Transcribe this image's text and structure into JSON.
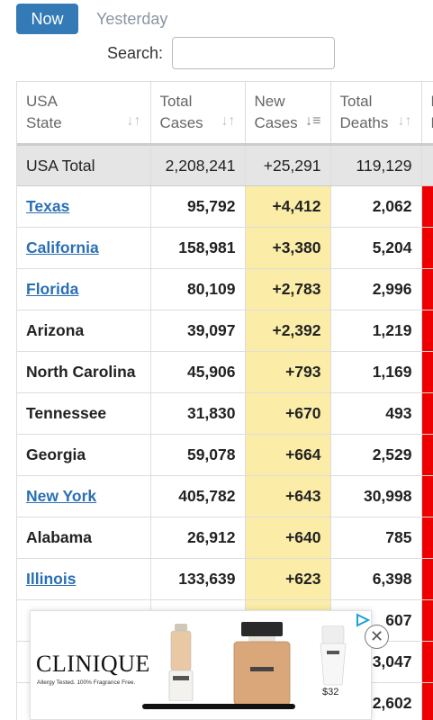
{
  "tabs": {
    "now": "Now",
    "yesterday": "Yesterday"
  },
  "search": {
    "label": "Search:",
    "value": "",
    "placeholder": ""
  },
  "columns": [
    {
      "line1": "USA",
      "line2": "State"
    },
    {
      "line1": "Total",
      "line2": "Cases"
    },
    {
      "line1": "New",
      "line2": "Cases"
    },
    {
      "line1": "Total",
      "line2": "Deaths"
    },
    {
      "line1": "N",
      "line2": "D"
    }
  ],
  "total_row": {
    "state": "USA Total",
    "total_cases": "2,208,241",
    "new_cases": "+25,291",
    "total_deaths": "119,129"
  },
  "rows": [
    {
      "state": "Texas",
      "total_cases": "95,792",
      "new_cases": "+4,412",
      "total_deaths": "2,062"
    },
    {
      "state": "California",
      "total_cases": "158,981",
      "new_cases": "+3,380",
      "total_deaths": "5,204"
    },
    {
      "state": "Florida",
      "total_cases": "80,109",
      "new_cases": "+2,783",
      "total_deaths": "2,996"
    },
    {
      "state": "Arizona",
      "total_cases": "39,097",
      "new_cases": "+2,392",
      "total_deaths": "1,219"
    },
    {
      "state": "North Carolina",
      "total_cases": "45,906",
      "new_cases": "+793",
      "total_deaths": "1,169"
    },
    {
      "state": "Tennessee",
      "total_cases": "31,830",
      "new_cases": "+670",
      "total_deaths": "493"
    },
    {
      "state": "Georgia",
      "total_cases": "59,078",
      "new_cases": "+664",
      "total_deaths": "2,529"
    },
    {
      "state": "New York",
      "total_cases": "405,782",
      "new_cases": "+643",
      "total_deaths": "30,998"
    },
    {
      "state": "Alabama",
      "total_cases": "26,912",
      "new_cases": "+640",
      "total_deaths": "785"
    },
    {
      "state": "Illinois",
      "total_cases": "133,639",
      "new_cases": "+623",
      "total_deaths": "6,398"
    },
    {
      "state": "",
      "total_cases": "",
      "new_cases": "",
      "total_deaths": "607"
    },
    {
      "state": "",
      "total_cases": "",
      "new_cases": "",
      "total_deaths": "3,047"
    },
    {
      "state": "",
      "total_cases": "",
      "new_cases": "",
      "total_deaths": "2,602"
    }
  ],
  "ad": {
    "brand": "CLINIQUE",
    "tagline": "Allergy Tested. 100% Fragrance Free.",
    "price": "$32",
    "close_icon": "close-icon",
    "choices_icon": "adchoices-icon"
  },
  "colors": {
    "accent": "#337ab7",
    "link": "#2a6fb5",
    "new_cases_bg": "#fbeda8",
    "deaths_bar": "#ee0000"
  }
}
